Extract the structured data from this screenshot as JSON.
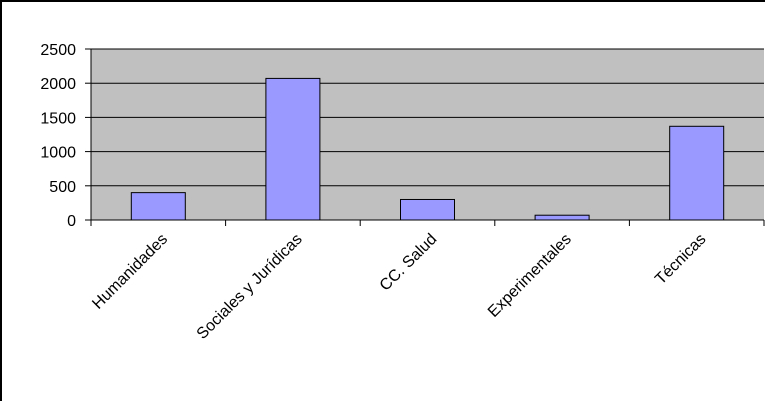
{
  "chart_data": {
    "type": "bar",
    "categories": [
      "Humanidades",
      "Sociales y Jurídicas",
      "CC. Salud",
      "Experimentales",
      "Técnicas"
    ],
    "values": [
      400,
      2070,
      300,
      70,
      1370
    ],
    "ylim": [
      0,
      2500
    ],
    "yticks": [
      0,
      500,
      1000,
      1500,
      2000,
      2500
    ],
    "ytick_labels": [
      "0",
      "500",
      "1000",
      "1500",
      "2000",
      "2500"
    ],
    "grid": true,
    "legend": "none",
    "colors": {
      "bar_fill": "#9999ff",
      "bar_stroke": "#000000",
      "plot_background": "#c0c0c0",
      "gridline": "#000000"
    }
  }
}
